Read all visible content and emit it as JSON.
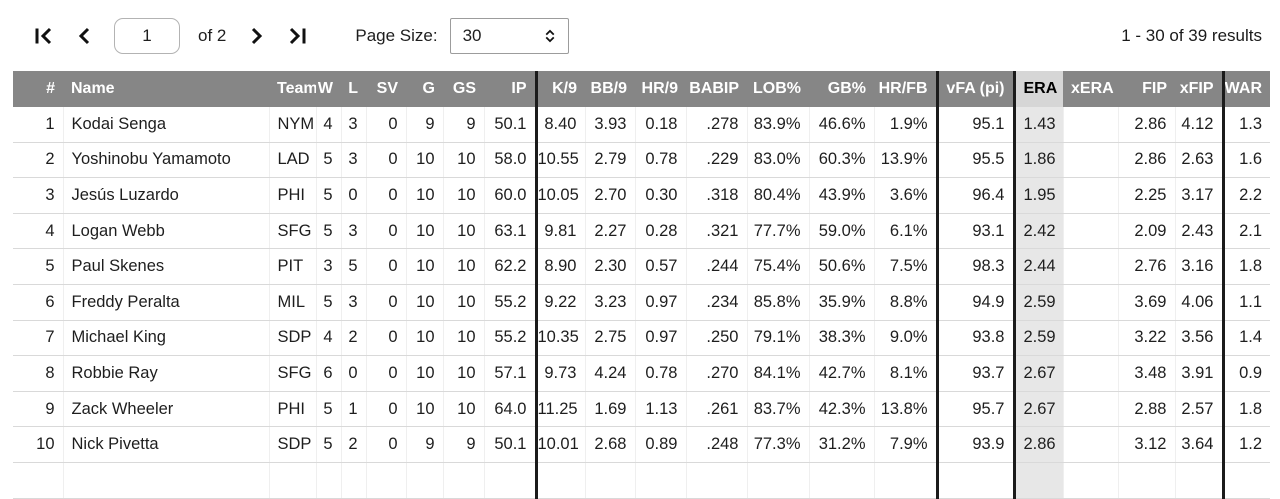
{
  "pagination": {
    "current_page": "1",
    "of_label": "of 2",
    "page_size_label": "Page Size:",
    "page_size_value": "30",
    "results_summary": "1 - 30 of 39 results"
  },
  "colors": {
    "header_bg": "#868686",
    "header_text": "#ffffff",
    "sorted_header_bg": "#d6d6d6",
    "sorted_cell_bg": "#e7e7e7",
    "thick_divider": "#1b1b1b"
  },
  "table": {
    "columns": [
      {
        "key": "rank",
        "label": "#"
      },
      {
        "key": "name",
        "label": "Name"
      },
      {
        "key": "team",
        "label": "Team"
      },
      {
        "key": "w",
        "label": "W"
      },
      {
        "key": "l",
        "label": "L"
      },
      {
        "key": "sv",
        "label": "SV"
      },
      {
        "key": "g",
        "label": "G"
      },
      {
        "key": "gs",
        "label": "GS"
      },
      {
        "key": "ip",
        "label": "IP"
      },
      {
        "key": "k9",
        "label": "K/9"
      },
      {
        "key": "bb9",
        "label": "BB/9"
      },
      {
        "key": "hr9",
        "label": "HR/9"
      },
      {
        "key": "babip",
        "label": "BABIP"
      },
      {
        "key": "lob",
        "label": "LOB%"
      },
      {
        "key": "gb",
        "label": "GB%"
      },
      {
        "key": "hrfb",
        "label": "HR/FB"
      },
      {
        "key": "vfa",
        "label": "vFA (pi)"
      },
      {
        "key": "era",
        "label": "ERA"
      },
      {
        "key": "xera",
        "label": "xERA"
      },
      {
        "key": "fip",
        "label": "FIP"
      },
      {
        "key": "xfip",
        "label": "xFIP"
      },
      {
        "key": "war",
        "label": "WAR"
      }
    ],
    "rows": [
      {
        "rank": "1",
        "name": "Kodai Senga",
        "team": "NYM",
        "w": "4",
        "l": "3",
        "sv": "0",
        "g": "9",
        "gs": "9",
        "ip": "50.1",
        "k9": "8.40",
        "bb9": "3.93",
        "hr9": "0.18",
        "babip": ".278",
        "lob": "83.9%",
        "gb": "46.6%",
        "hrfb": "1.9%",
        "vfa": "95.1",
        "era": "1.43",
        "xera": "",
        "fip": "2.86",
        "xfip": "4.12",
        "war": "1.3"
      },
      {
        "rank": "2",
        "name": "Yoshinobu Yamamoto",
        "team": "LAD",
        "w": "5",
        "l": "3",
        "sv": "0",
        "g": "10",
        "gs": "10",
        "ip": "58.0",
        "k9": "10.55",
        "bb9": "2.79",
        "hr9": "0.78",
        "babip": ".229",
        "lob": "83.0%",
        "gb": "60.3%",
        "hrfb": "13.9%",
        "vfa": "95.5",
        "era": "1.86",
        "xera": "",
        "fip": "2.86",
        "xfip": "2.63",
        "war": "1.6"
      },
      {
        "rank": "3",
        "name": "Jesús Luzardo",
        "team": "PHI",
        "w": "5",
        "l": "0",
        "sv": "0",
        "g": "10",
        "gs": "10",
        "ip": "60.0",
        "k9": "10.05",
        "bb9": "2.70",
        "hr9": "0.30",
        "babip": ".318",
        "lob": "80.4%",
        "gb": "43.9%",
        "hrfb": "3.6%",
        "vfa": "96.4",
        "era": "1.95",
        "xera": "",
        "fip": "2.25",
        "xfip": "3.17",
        "war": "2.2"
      },
      {
        "rank": "4",
        "name": "Logan Webb",
        "team": "SFG",
        "w": "5",
        "l": "3",
        "sv": "0",
        "g": "10",
        "gs": "10",
        "ip": "63.1",
        "k9": "9.81",
        "bb9": "2.27",
        "hr9": "0.28",
        "babip": ".321",
        "lob": "77.7%",
        "gb": "59.0%",
        "hrfb": "6.1%",
        "vfa": "93.1",
        "era": "2.42",
        "xera": "",
        "fip": "2.09",
        "xfip": "2.43",
        "war": "2.1"
      },
      {
        "rank": "5",
        "name": "Paul Skenes",
        "team": "PIT",
        "w": "3",
        "l": "5",
        "sv": "0",
        "g": "10",
        "gs": "10",
        "ip": "62.2",
        "k9": "8.90",
        "bb9": "2.30",
        "hr9": "0.57",
        "babip": ".244",
        "lob": "75.4%",
        "gb": "50.6%",
        "hrfb": "7.5%",
        "vfa": "98.3",
        "era": "2.44",
        "xera": "",
        "fip": "2.76",
        "xfip": "3.16",
        "war": "1.8"
      },
      {
        "rank": "6",
        "name": "Freddy Peralta",
        "team": "MIL",
        "w": "5",
        "l": "3",
        "sv": "0",
        "g": "10",
        "gs": "10",
        "ip": "55.2",
        "k9": "9.22",
        "bb9": "3.23",
        "hr9": "0.97",
        "babip": ".234",
        "lob": "85.8%",
        "gb": "35.9%",
        "hrfb": "8.8%",
        "vfa": "94.9",
        "era": "2.59",
        "xera": "",
        "fip": "3.69",
        "xfip": "4.06",
        "war": "1.1"
      },
      {
        "rank": "7",
        "name": "Michael King",
        "team": "SDP",
        "w": "4",
        "l": "2",
        "sv": "0",
        "g": "10",
        "gs": "10",
        "ip": "55.2",
        "k9": "10.35",
        "bb9": "2.75",
        "hr9": "0.97",
        "babip": ".250",
        "lob": "79.1%",
        "gb": "38.3%",
        "hrfb": "9.0%",
        "vfa": "93.8",
        "era": "2.59",
        "xera": "",
        "fip": "3.22",
        "xfip": "3.56",
        "war": "1.4"
      },
      {
        "rank": "8",
        "name": "Robbie Ray",
        "team": "SFG",
        "w": "6",
        "l": "0",
        "sv": "0",
        "g": "10",
        "gs": "10",
        "ip": "57.1",
        "k9": "9.73",
        "bb9": "4.24",
        "hr9": "0.78",
        "babip": ".270",
        "lob": "84.1%",
        "gb": "42.7%",
        "hrfb": "8.1%",
        "vfa": "93.7",
        "era": "2.67",
        "xera": "",
        "fip": "3.48",
        "xfip": "3.91",
        "war": "0.9"
      },
      {
        "rank": "9",
        "name": "Zack Wheeler",
        "team": "PHI",
        "w": "5",
        "l": "1",
        "sv": "0",
        "g": "10",
        "gs": "10",
        "ip": "64.0",
        "k9": "11.25",
        "bb9": "1.69",
        "hr9": "1.13",
        "babip": ".261",
        "lob": "83.7%",
        "gb": "42.3%",
        "hrfb": "13.8%",
        "vfa": "95.7",
        "era": "2.67",
        "xera": "",
        "fip": "2.88",
        "xfip": "2.57",
        "war": "1.8"
      },
      {
        "rank": "10",
        "name": "Nick Pivetta",
        "team": "SDP",
        "w": "5",
        "l": "2",
        "sv": "0",
        "g": "9",
        "gs": "9",
        "ip": "50.1",
        "k9": "10.01",
        "bb9": "2.68",
        "hr9": "0.89",
        "babip": ".248",
        "lob": "77.3%",
        "gb": "31.2%",
        "hrfb": "7.9%",
        "vfa": "93.9",
        "era": "2.86",
        "xera": "",
        "fip": "3.12",
        "xfip": "3.64",
        "war": "1.2"
      }
    ]
  }
}
